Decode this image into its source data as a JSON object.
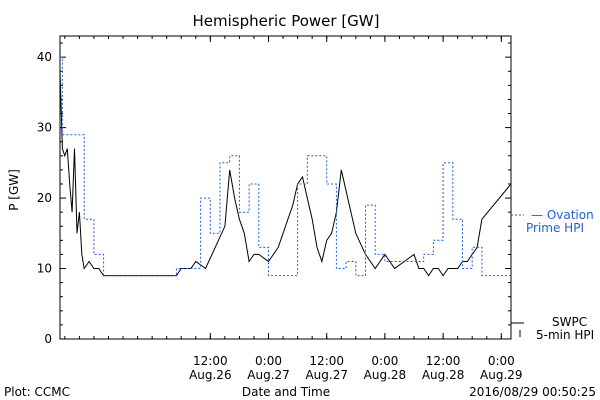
{
  "chart_data": {
    "type": "line",
    "title": "Hemispheric Power [GW]",
    "xlabel": "Date and Time",
    "ylabel": "P [GW]",
    "ylim": [
      0,
      43
    ],
    "yticks": [
      0,
      10,
      20,
      30,
      40
    ],
    "xlim": [
      "2016-08-25T05:00",
      "2016-08-29T02:00"
    ],
    "xticks": [
      {
        "at": "2016-08-26T12:00",
        "time": "12:00",
        "date": "Aug.26"
      },
      {
        "at": "2016-08-27T00:00",
        "time": "0:00",
        "date": "Aug.27"
      },
      {
        "at": "2016-08-27T12:00",
        "time": "12:00",
        "date": "Aug.27"
      },
      {
        "at": "2016-08-28T00:00",
        "time": "0:00",
        "date": "Aug.28"
      },
      {
        "at": "2016-08-28T12:00",
        "time": "12:00",
        "date": "Aug.28"
      },
      {
        "at": "2016-08-29T00:00",
        "time": "0:00",
        "date": "Aug.29"
      }
    ],
    "grid": false,
    "legend_position": "right",
    "series": [
      {
        "name": "SWPC 5-min HPI",
        "style": "solid",
        "color": "#000000",
        "x": [
          "2016-08-25T05:00",
          "2016-08-25T05:30",
          "2016-08-25T06:00",
          "2016-08-25T06:30",
          "2016-08-25T07:00",
          "2016-08-25T07:30",
          "2016-08-25T08:00",
          "2016-08-25T08:30",
          "2016-08-25T09:00",
          "2016-08-25T09:30",
          "2016-08-25T10:00",
          "2016-08-25T11:00",
          "2016-08-25T12:00",
          "2016-08-25T13:00",
          "2016-08-25T14:00",
          "2016-08-25T16:00",
          "2016-08-26T05:00",
          "2016-08-26T06:00",
          "2016-08-26T08:00",
          "2016-08-26T09:00",
          "2016-08-26T11:00",
          "2016-08-26T13:00",
          "2016-08-26T15:00",
          "2016-08-26T16:00",
          "2016-08-26T17:00",
          "2016-08-26T18:00",
          "2016-08-26T19:00",
          "2016-08-26T20:00",
          "2016-08-26T21:00",
          "2016-08-26T22:00",
          "2016-08-27T00:00",
          "2016-08-27T02:00",
          "2016-08-27T04:00",
          "2016-08-27T05:00",
          "2016-08-27T06:00",
          "2016-08-27T07:00",
          "2016-08-27T08:00",
          "2016-08-27T09:00",
          "2016-08-27T10:00",
          "2016-08-27T11:00",
          "2016-08-27T12:00",
          "2016-08-27T13:00",
          "2016-08-27T14:00",
          "2016-08-27T15:00",
          "2016-08-27T16:00",
          "2016-08-27T18:00",
          "2016-08-27T20:00",
          "2016-08-27T21:00",
          "2016-08-27T22:00",
          "2016-08-28T00:00",
          "2016-08-28T02:00",
          "2016-08-28T04:00",
          "2016-08-28T06:00",
          "2016-08-28T07:00",
          "2016-08-28T08:00",
          "2016-08-28T09:00",
          "2016-08-28T10:00",
          "2016-08-28T11:00",
          "2016-08-28T12:00",
          "2016-08-28T13:00",
          "2016-08-28T14:00",
          "2016-08-28T15:00",
          "2016-08-28T16:00",
          "2016-08-28T17:00",
          "2016-08-28T18:00",
          "2016-08-28T19:00",
          "2016-08-28T20:00",
          "2016-08-29T02:00"
        ],
        "y": [
          38,
          27,
          26,
          27,
          22,
          18,
          27,
          15,
          18,
          12,
          10,
          11,
          10,
          10,
          9,
          9,
          9,
          10,
          10,
          11,
          10,
          13,
          16,
          24,
          20,
          17,
          15,
          11,
          12,
          12,
          11,
          13,
          17,
          19,
          22,
          23,
          20,
          17,
          13,
          11,
          14,
          15,
          18,
          24,
          21,
          15,
          12,
          11,
          10,
          12,
          10,
          11,
          12,
          10,
          10,
          9,
          10,
          10,
          9,
          10,
          10,
          10,
          11,
          11,
          12,
          13,
          17,
          22
        ]
      },
      {
        "name": "Ovation Prime HPI",
        "style": "dashed",
        "color": "#1f5fd0",
        "x": [
          "2016-08-25T05:00",
          "2016-08-25T05:30",
          "2016-08-25T07:00",
          "2016-08-25T10:00",
          "2016-08-25T12:00",
          "2016-08-25T14:00",
          "2016-08-25T17:00",
          "2016-08-26T05:00",
          "2016-08-26T08:00",
          "2016-08-26T10:00",
          "2016-08-26T12:00",
          "2016-08-26T14:00",
          "2016-08-26T16:00",
          "2016-08-26T18:00",
          "2016-08-26T20:00",
          "2016-08-26T22:00",
          "2016-08-27T00:00",
          "2016-08-27T02:00",
          "2016-08-27T04:00",
          "2016-08-27T06:00",
          "2016-08-27T08:00",
          "2016-08-27T10:00",
          "2016-08-27T12:00",
          "2016-08-27T14:00",
          "2016-08-27T16:00",
          "2016-08-27T18:00",
          "2016-08-27T20:00",
          "2016-08-27T22:00",
          "2016-08-28T00:00",
          "2016-08-28T02:00",
          "2016-08-28T04:00",
          "2016-08-28T06:00",
          "2016-08-28T08:00",
          "2016-08-28T10:00",
          "2016-08-28T12:00",
          "2016-08-28T14:00",
          "2016-08-28T16:00",
          "2016-08-28T18:00",
          "2016-08-28T20:00",
          "2016-08-28T22:00",
          "2016-08-29T02:00"
        ],
        "y": [
          40,
          29,
          29,
          17,
          12,
          9,
          9,
          10,
          10,
          20,
          15,
          25,
          26,
          18,
          22,
          13,
          9,
          9,
          9,
          22,
          26,
          26,
          22,
          10,
          11,
          9,
          19,
          12,
          11,
          11,
          11,
          11,
          12,
          14,
          25,
          17,
          10,
          13,
          9,
          9,
          9
        ]
      }
    ]
  },
  "annotations": {
    "legend_ovation_line1": "— Ovation",
    "legend_ovation_line2": "Prime HPI",
    "legend_swpc_line1": "SWPC",
    "legend_swpc_line2": "5-min HPI",
    "footer_left": "Plot: CCMC",
    "footer_right": "2016/08/29 00:50:25"
  },
  "colors": {
    "axis": "#000000",
    "model": "#1f5fd0",
    "observed": "#000000"
  }
}
